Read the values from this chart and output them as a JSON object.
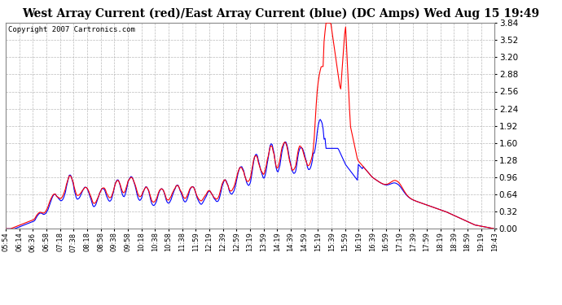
{
  "title": "West Array Current (red)/East Array Current (blue) (DC Amps) Wed Aug 15 19:49",
  "copyright_text": "Copyright 2007 Cartronics.com",
  "title_fontsize": 10,
  "background_color": "#ffffff",
  "plot_bg_color": "#ffffff",
  "grid_color": "#aaaaaa",
  "y_ticks": [
    0.0,
    0.32,
    0.64,
    0.96,
    1.28,
    1.6,
    1.92,
    2.24,
    2.56,
    2.88,
    3.2,
    3.52,
    3.84
  ],
  "ylim": [
    0,
    3.84
  ],
  "red_color": "#ff0000",
  "blue_color": "#0000ff",
  "line_width": 0.8,
  "time_labels": [
    "05:54",
    "06:14",
    "06:36",
    "06:58",
    "07:18",
    "07:38",
    "08:18",
    "08:58",
    "09:38",
    "09:58",
    "10:18",
    "10:38",
    "10:58",
    "11:38",
    "11:59",
    "12:19",
    "12:39",
    "12:59",
    "13:19",
    "13:59",
    "14:19",
    "14:39",
    "14:59",
    "15:19",
    "15:39",
    "15:59",
    "16:19",
    "16:39",
    "16:59",
    "17:19",
    "17:39",
    "17:59",
    "18:19",
    "18:39",
    "18:59",
    "19:19",
    "19:43"
  ]
}
